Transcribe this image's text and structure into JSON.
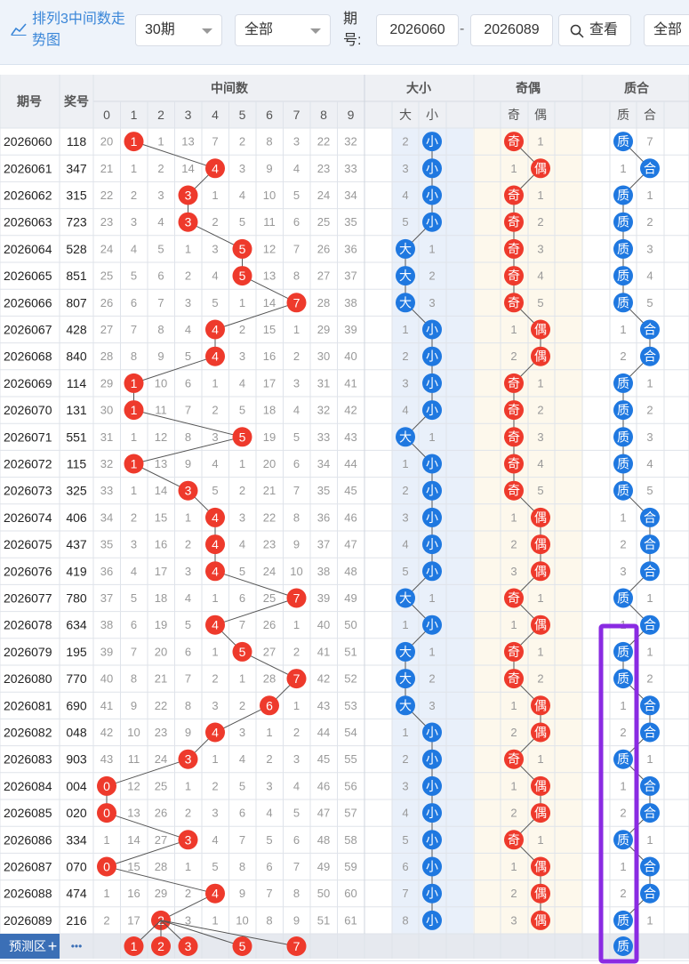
{
  "toolbar": {
    "title": "排列3中间数走势图",
    "period_select": "30期",
    "type_select": "全部",
    "period_label": "期号:",
    "from_issue": "2026060",
    "dash": "-",
    "to_issue": "2026089",
    "query_button": "查看",
    "all_button": "全部"
  },
  "header": {
    "issue": "期号",
    "draw": "奖号",
    "middle": "中间数",
    "size": "大小",
    "parity": "奇偶",
    "prime": "质合",
    "middle_digits": [
      "0",
      "1",
      "2",
      "3",
      "4",
      "5",
      "6",
      "7",
      "8",
      "9"
    ],
    "size_cols": [
      "大",
      "小"
    ],
    "parity_cols": [
      "奇",
      "偶"
    ],
    "prime_cols": [
      "质",
      "合"
    ]
  },
  "colors": {
    "red_ball": "#ee3a2c",
    "blue_ball": "#1f78e0",
    "highlight_box": "#8a2be2",
    "header_bg": "#eef0f4",
    "size_bg": "#e9f0fa",
    "parity_bg": "#fdf8ec",
    "prime_bg": "#ffffff"
  },
  "chart_data": {
    "type": "table",
    "rows": [
      {
        "issue": "2026060",
        "draw": "118",
        "middle": 1,
        "miss": [
          20,
          null,
          1,
          13,
          7,
          2,
          8,
          3,
          22,
          32
        ],
        "size": "小",
        "size_miss": 2,
        "parity": "奇",
        "parity_miss": 1,
        "prime": "质",
        "prime_miss": 7
      },
      {
        "issue": "2026061",
        "draw": "347",
        "middle": 4,
        "miss": [
          21,
          1,
          2,
          14,
          null,
          3,
          9,
          4,
          23,
          33
        ],
        "size": "小",
        "size_miss": 3,
        "parity": "偶",
        "parity_miss": 1,
        "prime": "合",
        "prime_miss": 1
      },
      {
        "issue": "2026062",
        "draw": "315",
        "middle": 3,
        "miss": [
          22,
          2,
          3,
          null,
          1,
          4,
          10,
          5,
          24,
          34
        ],
        "size": "小",
        "size_miss": 4,
        "parity": "奇",
        "parity_miss": 1,
        "prime": "质",
        "prime_miss": 1
      },
      {
        "issue": "2026063",
        "draw": "723",
        "middle": 3,
        "miss": [
          23,
          3,
          4,
          null,
          2,
          5,
          11,
          6,
          25,
          35
        ],
        "size": "小",
        "size_miss": 5,
        "parity": "奇",
        "parity_miss": 2,
        "prime": "质",
        "prime_miss": 2
      },
      {
        "issue": "2026064",
        "draw": "528",
        "middle": 5,
        "miss": [
          24,
          4,
          5,
          1,
          3,
          null,
          12,
          7,
          26,
          36
        ],
        "size": "大",
        "size_miss": 1,
        "parity": "奇",
        "parity_miss": 3,
        "prime": "质",
        "prime_miss": 3
      },
      {
        "issue": "2026065",
        "draw": "851",
        "middle": 5,
        "miss": [
          25,
          5,
          6,
          2,
          4,
          null,
          13,
          8,
          27,
          37
        ],
        "size": "大",
        "size_miss": 2,
        "parity": "奇",
        "parity_miss": 4,
        "prime": "质",
        "prime_miss": 4
      },
      {
        "issue": "2026066",
        "draw": "807",
        "middle": 7,
        "miss": [
          26,
          6,
          7,
          3,
          5,
          1,
          14,
          null,
          28,
          38
        ],
        "size": "大",
        "size_miss": 3,
        "parity": "奇",
        "parity_miss": 5,
        "prime": "质",
        "prime_miss": 5
      },
      {
        "issue": "2026067",
        "draw": "428",
        "middle": 4,
        "miss": [
          27,
          7,
          8,
          4,
          null,
          2,
          15,
          1,
          29,
          39
        ],
        "size": "小",
        "size_miss": 1,
        "parity": "偶",
        "parity_miss": 1,
        "prime": "合",
        "prime_miss": 1
      },
      {
        "issue": "2026068",
        "draw": "840",
        "middle": 4,
        "miss": [
          28,
          8,
          9,
          5,
          null,
          3,
          16,
          2,
          30,
          40
        ],
        "size": "小",
        "size_miss": 2,
        "parity": "偶",
        "parity_miss": 2,
        "prime": "合",
        "prime_miss": 2
      },
      {
        "issue": "2026069",
        "draw": "114",
        "middle": 1,
        "miss": [
          29,
          null,
          10,
          6,
          1,
          4,
          17,
          3,
          31,
          41
        ],
        "size": "小",
        "size_miss": 3,
        "parity": "奇",
        "parity_miss": 1,
        "prime": "质",
        "prime_miss": 1
      },
      {
        "issue": "2026070",
        "draw": "131",
        "middle": 1,
        "miss": [
          30,
          null,
          11,
          7,
          2,
          5,
          18,
          4,
          32,
          42
        ],
        "size": "小",
        "size_miss": 4,
        "parity": "奇",
        "parity_miss": 2,
        "prime": "质",
        "prime_miss": 2
      },
      {
        "issue": "2026071",
        "draw": "551",
        "middle": 5,
        "miss": [
          31,
          1,
          12,
          8,
          3,
          null,
          19,
          5,
          33,
          43
        ],
        "size": "大",
        "size_miss": 1,
        "parity": "奇",
        "parity_miss": 3,
        "prime": "质",
        "prime_miss": 3
      },
      {
        "issue": "2026072",
        "draw": "115",
        "middle": 1,
        "miss": [
          32,
          null,
          13,
          9,
          4,
          1,
          20,
          6,
          34,
          44
        ],
        "size": "小",
        "size_miss": 1,
        "parity": "奇",
        "parity_miss": 4,
        "prime": "质",
        "prime_miss": 4
      },
      {
        "issue": "2026073",
        "draw": "325",
        "middle": 3,
        "miss": [
          33,
          1,
          14,
          null,
          5,
          2,
          21,
          7,
          35,
          45
        ],
        "size": "小",
        "size_miss": 2,
        "parity": "奇",
        "parity_miss": 5,
        "prime": "质",
        "prime_miss": 5
      },
      {
        "issue": "2026074",
        "draw": "406",
        "middle": 4,
        "miss": [
          34,
          2,
          15,
          1,
          null,
          3,
          22,
          8,
          36,
          46
        ],
        "size": "小",
        "size_miss": 3,
        "parity": "偶",
        "parity_miss": 1,
        "prime": "合",
        "prime_miss": 1
      },
      {
        "issue": "2026075",
        "draw": "437",
        "middle": 4,
        "miss": [
          35,
          3,
          16,
          2,
          null,
          4,
          23,
          9,
          37,
          47
        ],
        "size": "小",
        "size_miss": 4,
        "parity": "偶",
        "parity_miss": 2,
        "prime": "合",
        "prime_miss": 2
      },
      {
        "issue": "2026076",
        "draw": "419",
        "middle": 4,
        "miss": [
          36,
          4,
          17,
          3,
          null,
          5,
          24,
          10,
          38,
          48
        ],
        "size": "小",
        "size_miss": 5,
        "parity": "偶",
        "parity_miss": 3,
        "prime": "合",
        "prime_miss": 3
      },
      {
        "issue": "2026077",
        "draw": "780",
        "middle": 7,
        "miss": [
          37,
          5,
          18,
          4,
          1,
          6,
          25,
          null,
          39,
          49
        ],
        "size": "大",
        "size_miss": 1,
        "parity": "奇",
        "parity_miss": 1,
        "prime": "质",
        "prime_miss": 1
      },
      {
        "issue": "2026078",
        "draw": "634",
        "middle": 4,
        "miss": [
          38,
          6,
          19,
          5,
          null,
          7,
          26,
          1,
          40,
          50
        ],
        "size": "小",
        "size_miss": 1,
        "parity": "偶",
        "parity_miss": 1,
        "prime": "合",
        "prime_miss": 1
      },
      {
        "issue": "2026079",
        "draw": "195",
        "middle": 5,
        "miss": [
          39,
          7,
          20,
          6,
          1,
          null,
          27,
          2,
          41,
          51
        ],
        "size": "大",
        "size_miss": 1,
        "parity": "奇",
        "parity_miss": 1,
        "prime": "质",
        "prime_miss": 1
      },
      {
        "issue": "2026080",
        "draw": "770",
        "middle": 7,
        "miss": [
          40,
          8,
          21,
          7,
          2,
          1,
          28,
          null,
          42,
          52
        ],
        "size": "大",
        "size_miss": 2,
        "parity": "奇",
        "parity_miss": 2,
        "prime": "质",
        "prime_miss": 2
      },
      {
        "issue": "2026081",
        "draw": "690",
        "middle": 6,
        "miss": [
          41,
          9,
          22,
          8,
          3,
          2,
          null,
          1,
          43,
          53
        ],
        "size": "大",
        "size_miss": 3,
        "parity": "偶",
        "parity_miss": 1,
        "prime": "合",
        "prime_miss": 1
      },
      {
        "issue": "2026082",
        "draw": "048",
        "middle": 4,
        "miss": [
          42,
          10,
          23,
          9,
          null,
          3,
          1,
          2,
          44,
          54
        ],
        "size": "小",
        "size_miss": 1,
        "parity": "偶",
        "parity_miss": 2,
        "prime": "合",
        "prime_miss": 2
      },
      {
        "issue": "2026083",
        "draw": "903",
        "middle": 3,
        "miss": [
          43,
          11,
          24,
          null,
          1,
          4,
          2,
          3,
          45,
          55
        ],
        "size": "小",
        "size_miss": 2,
        "parity": "奇",
        "parity_miss": 1,
        "prime": "质",
        "prime_miss": 1
      },
      {
        "issue": "2026084",
        "draw": "004",
        "middle": 0,
        "miss": [
          null,
          12,
          25,
          1,
          2,
          5,
          3,
          4,
          46,
          56
        ],
        "size": "小",
        "size_miss": 3,
        "parity": "偶",
        "parity_miss": 1,
        "prime": "合",
        "prime_miss": 1
      },
      {
        "issue": "2026085",
        "draw": "020",
        "middle": 0,
        "miss": [
          null,
          13,
          26,
          2,
          3,
          6,
          4,
          5,
          47,
          57
        ],
        "size": "小",
        "size_miss": 4,
        "parity": "偶",
        "parity_miss": 2,
        "prime": "合",
        "prime_miss": 2
      },
      {
        "issue": "2026086",
        "draw": "334",
        "middle": 3,
        "miss": [
          1,
          14,
          27,
          null,
          4,
          7,
          5,
          6,
          48,
          58
        ],
        "size": "小",
        "size_miss": 5,
        "parity": "奇",
        "parity_miss": 1,
        "prime": "质",
        "prime_miss": 1
      },
      {
        "issue": "2026087",
        "draw": "070",
        "middle": 0,
        "miss": [
          null,
          15,
          28,
          1,
          5,
          8,
          6,
          7,
          49,
          59
        ],
        "size": "小",
        "size_miss": 6,
        "parity": "偶",
        "parity_miss": 1,
        "prime": "合",
        "prime_miss": 1
      },
      {
        "issue": "2026088",
        "draw": "474",
        "middle": 4,
        "miss": [
          1,
          16,
          29,
          2,
          null,
          9,
          7,
          8,
          50,
          60
        ],
        "size": "小",
        "size_miss": 7,
        "parity": "偶",
        "parity_miss": 2,
        "prime": "合",
        "prime_miss": 2
      },
      {
        "issue": "2026089",
        "draw": "216",
        "middle": 2,
        "miss": [
          2,
          17,
          null,
          3,
          1,
          10,
          8,
          9,
          51,
          61
        ],
        "size": "小",
        "size_miss": 8,
        "parity": "偶",
        "parity_miss": 3,
        "prime": "质",
        "prime_miss": 1
      }
    ],
    "prediction": {
      "label": "预测区",
      "plus": "+",
      "more": "•••",
      "middle_picks": [
        1,
        2,
        3,
        5,
        7
      ],
      "prime_pick": "质"
    }
  }
}
